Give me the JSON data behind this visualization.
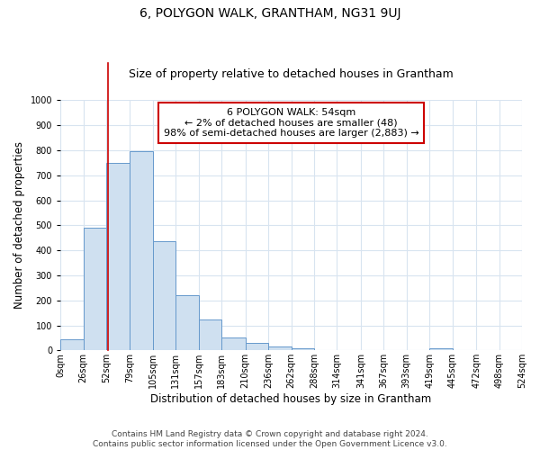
{
  "title": "6, POLYGON WALK, GRANTHAM, NG31 9UJ",
  "subtitle": "Size of property relative to detached houses in Grantham",
  "xlabel": "Distribution of detached houses by size in Grantham",
  "ylabel": "Number of detached properties",
  "bar_edges": [
    0,
    26,
    52,
    79,
    105,
    131,
    157,
    183,
    210,
    236,
    262,
    288,
    314,
    341,
    367,
    393,
    419,
    445,
    472,
    498,
    524
  ],
  "bar_heights": [
    45,
    490,
    750,
    795,
    435,
    220,
    125,
    50,
    30,
    15,
    8,
    0,
    0,
    0,
    0,
    0,
    8,
    0,
    0,
    0
  ],
  "bar_color": "#cfe0f0",
  "bar_edgecolor": "#6699cc",
  "property_line_x": 54,
  "property_line_color": "#cc0000",
  "annotation_line1": "6 POLYGON WALK: 54sqm",
  "annotation_line2": "← 2% of detached houses are smaller (48)",
  "annotation_line3": "98% of semi-detached houses are larger (2,883) →",
  "annotation_box_color": "#ffffff",
  "annotation_box_edgecolor": "#cc0000",
  "xlim": [
    0,
    524
  ],
  "ylim": [
    0,
    1000
  ],
  "yticks": [
    0,
    100,
    200,
    300,
    400,
    500,
    600,
    700,
    800,
    900,
    1000
  ],
  "xtick_labels": [
    "0sqm",
    "26sqm",
    "52sqm",
    "79sqm",
    "105sqm",
    "131sqm",
    "157sqm",
    "183sqm",
    "210sqm",
    "236sqm",
    "262sqm",
    "288sqm",
    "314sqm",
    "341sqm",
    "367sqm",
    "393sqm",
    "419sqm",
    "445sqm",
    "472sqm",
    "498sqm",
    "524sqm"
  ],
  "xtick_positions": [
    0,
    26,
    52,
    79,
    105,
    131,
    157,
    183,
    210,
    236,
    262,
    288,
    314,
    341,
    367,
    393,
    419,
    445,
    472,
    498,
    524
  ],
  "footer_text": "Contains HM Land Registry data © Crown copyright and database right 2024.\nContains public sector information licensed under the Open Government Licence v3.0.",
  "grid_color": "#d8e4f0",
  "background_color": "#ffffff",
  "title_fontsize": 10,
  "subtitle_fontsize": 9,
  "axis_label_fontsize": 8.5,
  "tick_fontsize": 7,
  "annotation_fontsize": 8,
  "footer_fontsize": 6.5
}
